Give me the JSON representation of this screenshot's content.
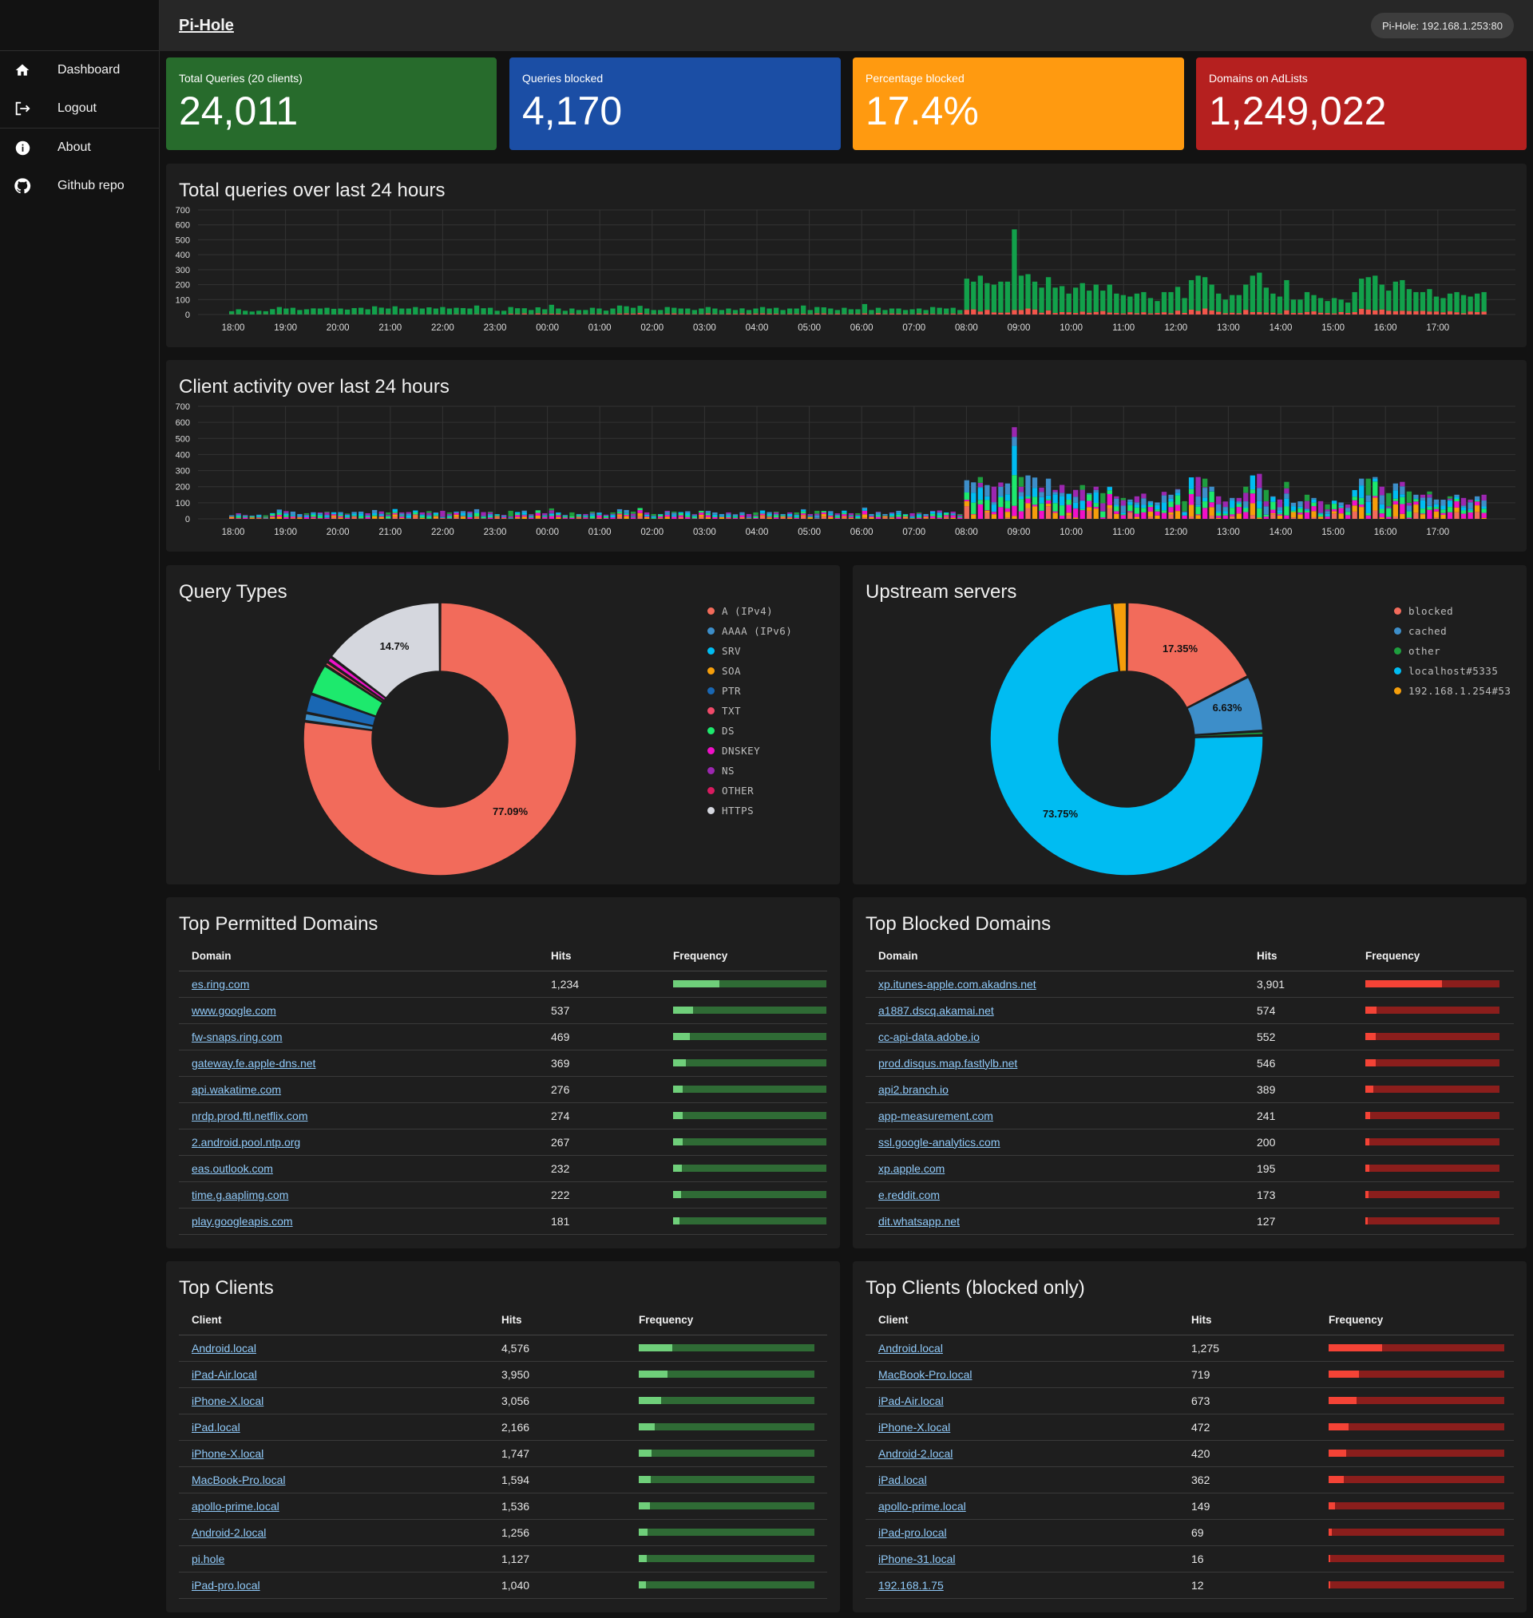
{
  "app": {
    "title": "Pi-Hole",
    "host": "Pi-Hole: 192.168.1.253:80"
  },
  "sidebar": {
    "items": [
      {
        "label": "Dashboard",
        "icon": "home-icon"
      },
      {
        "label": "Logout",
        "icon": "logout-icon"
      },
      {
        "label": "About",
        "icon": "info-icon"
      },
      {
        "label": "Github repo",
        "icon": "github-icon"
      }
    ]
  },
  "stats": [
    {
      "label": "Total Queries (20 clients)",
      "value": "24,011",
      "color": "#276b2c"
    },
    {
      "label": "Queries blocked",
      "value": "4,170",
      "color": "#1b4ea5"
    },
    {
      "label": "Percentage blocked",
      "value": "17.4%",
      "color": "#ff9a10"
    },
    {
      "label": "Domains on AdLists",
      "value": "1,249,022",
      "color": "#b5201f"
    }
  ],
  "chart_data": [
    {
      "type": "bar",
      "title": "Total queries over last 24 hours",
      "stacked": true,
      "ylim": [
        0,
        700
      ],
      "yticks": [
        0,
        100,
        200,
        300,
        400,
        500,
        600,
        700
      ],
      "x_labels": [
        "18:00",
        "19:00",
        "20:00",
        "21:00",
        "22:00",
        "23:00",
        "00:00",
        "01:00",
        "02:00",
        "03:00",
        "04:00",
        "05:00",
        "06:00",
        "07:00",
        "08:00",
        "09:00",
        "10:00",
        "11:00",
        "12:00",
        "13:00",
        "14:00",
        "15:00",
        "16:00",
        "17:00"
      ],
      "grid": true,
      "series": [
        {
          "values": [
            22,
            35,
            25,
            20,
            25,
            22,
            36,
            50,
            40,
            45,
            30,
            35,
            41,
            40,
            45,
            38,
            40,
            33,
            43,
            45,
            35,
            55,
            46,
            40,
            55,
            40,
            40,
            50,
            40,
            48,
            40,
            50,
            40,
            45,
            43,
            40,
            60,
            42,
            45,
            25,
            25,
            50,
            42,
            42,
            30,
            48,
            35,
            65,
            40,
            25,
            40,
            30,
            30,
            45,
            40,
            26,
            40,
            60,
            55,
            45,
            58,
            40,
            30,
            30,
            50,
            45,
            40,
            40,
            30,
            40,
            50,
            40,
            30,
            40,
            30,
            41,
            30,
            40,
            50,
            40,
            45,
            30,
            40,
            40,
            60,
            30,
            50,
            48,
            40,
            30,
            45,
            35,
            35,
            70,
            30,
            45,
            30,
            40,
            40,
            30,
            35,
            40,
            30,
            50,
            45,
            40,
            45,
            30,
            240,
            220,
            260,
            210,
            200,
            220,
            220,
            570,
            260,
            270,
            220,
            180,
            250,
            180,
            190,
            140,
            180,
            210,
            160,
            200,
            160,
            200,
            140,
            130,
            120,
            140,
            150,
            110,
            90,
            150,
            150,
            185,
            110,
            230,
            260,
            250,
            200,
            140,
            100,
            130,
            130,
            200,
            260,
            280,
            180,
            140,
            120,
            230,
            100,
            100,
            150,
            130,
            110,
            90,
            110,
            100,
            80,
            150,
            240,
            250,
            260,
            200,
            160,
            220,
            230,
            170,
            150,
            150,
            170,
            120,
            110,
            140,
            150,
            130,
            120,
            140,
            150
          ]
        },
        {
          "values": [
            0,
            0,
            0,
            0,
            0,
            0,
            0,
            0,
            0,
            0,
            0,
            0,
            0,
            0,
            0,
            0,
            0,
            0,
            0,
            0,
            0,
            0,
            0,
            0,
            0,
            0,
            0,
            0,
            0,
            0,
            0,
            0,
            0,
            0,
            0,
            0,
            0,
            0,
            0,
            0,
            0,
            0,
            0,
            0,
            0,
            0,
            0,
            0,
            0,
            0,
            0,
            0,
            0,
            0,
            0,
            0,
            0,
            0,
            0,
            0,
            0,
            0,
            0,
            0,
            0,
            0,
            0,
            0,
            0,
            0,
            0,
            0,
            0,
            0,
            0,
            0,
            0,
            0,
            0,
            0,
            0,
            0,
            0,
            0,
            0,
            0,
            0,
            0,
            0,
            0,
            0,
            0,
            0,
            0,
            0,
            0,
            0,
            0,
            0,
            0,
            0,
            0,
            0,
            0,
            0,
            0,
            0,
            0,
            0,
            0,
            0,
            0,
            0,
            0,
            0,
            0,
            0,
            0,
            0,
            0,
            0,
            0,
            0,
            0,
            0,
            0,
            0,
            0,
            0,
            0,
            0,
            0,
            0,
            0,
            0,
            0,
            0,
            0,
            0,
            0,
            0,
            0,
            0,
            0,
            0,
            0,
            0,
            0,
            0,
            0,
            0,
            0,
            0,
            0,
            0,
            0,
            0,
            0,
            0,
            0,
            0,
            0,
            0,
            0,
            0,
            0,
            0,
            0,
            0,
            0,
            0,
            0,
            0,
            0,
            0,
            0,
            0,
            0,
            0,
            0,
            0,
            0,
            0,
            0,
            0
          ]
        }
      ]
    },
    {
      "type": "bar",
      "title": "Client activity over last 24 hours",
      "stacked": true,
      "ylim": [
        0,
        700
      ],
      "yticks": [
        0,
        100,
        200,
        300,
        400,
        500,
        600,
        700
      ],
      "x_labels": [
        "18:00",
        "19:00",
        "20:00",
        "21:00",
        "22:00",
        "23:00",
        "00:00",
        "01:00",
        "02:00",
        "03:00",
        "04:00",
        "05:00",
        "06:00",
        "07:00",
        "08:00",
        "09:00",
        "10:00",
        "11:00",
        "12:00",
        "13:00",
        "14:00",
        "15:00",
        "16:00",
        "17:00"
      ],
      "grid": true
    }
  ],
  "query_types": {
    "title": "Query Types",
    "legend": [
      {
        "label": "A (IPv4)",
        "color": "#f26b5b"
      },
      {
        "label": "AAAA (IPv6)",
        "color": "#3d8ec9"
      },
      {
        "label": "SRV",
        "color": "#00bcf2"
      },
      {
        "label": "SOA",
        "color": "#f59e0b"
      },
      {
        "label": "PTR",
        "color": "#1967b3"
      },
      {
        "label": "TXT",
        "color": "#f04a6a"
      },
      {
        "label": "DS",
        "color": "#1de96d"
      },
      {
        "label": "DNSKEY",
        "color": "#f010c8"
      },
      {
        "label": "NS",
        "color": "#9c27b0"
      },
      {
        "label": "OTHER",
        "color": "#d81b60"
      },
      {
        "label": "HTTPS",
        "color": "#d5d7de"
      }
    ],
    "chart_data": {
      "type": "pie",
      "slices": [
        {
          "label": "A (IPv4)",
          "value": 77.09,
          "color": "#f26b5b"
        },
        {
          "label": "AAAA (IPv6)",
          "value": 1.0,
          "color": "#3d8ec9"
        },
        {
          "label": "PTR",
          "value": 2.3,
          "color": "#1967b3"
        },
        {
          "label": "DS",
          "value": 3.7,
          "color": "#1de96d"
        },
        {
          "label": "TXT",
          "value": 0.5,
          "color": "#f04a6a"
        },
        {
          "label": "DNSKEY",
          "value": 0.7,
          "color": "#f010c8"
        },
        {
          "label": "HTTPS",
          "value": 14.7,
          "color": "#d5d7de"
        }
      ],
      "labels": [
        {
          "text": "77.09%"
        },
        {
          "text": "14.7%"
        }
      ]
    }
  },
  "upstream": {
    "title": "Upstream servers",
    "legend": [
      {
        "label": "blocked",
        "color": "#f26b5b"
      },
      {
        "label": "cached",
        "color": "#3d8ec9"
      },
      {
        "label": "other",
        "color": "#1e9e3e"
      },
      {
        "label": "localhost#5335",
        "color": "#00bcf2"
      },
      {
        "label": "192.168.1.254#53",
        "color": "#f59e0b"
      }
    ],
    "chart_data": {
      "type": "pie",
      "slices": [
        {
          "label": "blocked",
          "value": 17.35,
          "color": "#f26b5b"
        },
        {
          "label": "cached",
          "value": 6.63,
          "color": "#3d8ec9"
        },
        {
          "label": "other",
          "value": 0.5,
          "color": "#1e9e3e"
        },
        {
          "label": "localhost#5335",
          "value": 73.75,
          "color": "#00bcf2"
        },
        {
          "label": "192.168.1.254#53",
          "value": 1.77,
          "color": "#f59e0b"
        }
      ],
      "labels": [
        {
          "text": "17.35%"
        },
        {
          "text": "6.63%"
        },
        {
          "text": "73.75%"
        }
      ]
    }
  },
  "top_permitted": {
    "title": "Top Permitted Domains",
    "headers": [
      "Domain",
      "Hits",
      "Frequency"
    ],
    "rows": [
      {
        "name": "es.ring.com",
        "hits": "1,234",
        "freq": 0.3
      },
      {
        "name": "www.google.com",
        "hits": "537",
        "freq": 0.13
      },
      {
        "name": "fw-snaps.ring.com",
        "hits": "469",
        "freq": 0.11
      },
      {
        "name": "gateway.fe.apple-dns.net",
        "hits": "369",
        "freq": 0.085
      },
      {
        "name": "api.wakatime.com",
        "hits": "276",
        "freq": 0.065
      },
      {
        "name": "nrdp.prod.ftl.netflix.com",
        "hits": "274",
        "freq": 0.064
      },
      {
        "name": "2.android.pool.ntp.org",
        "hits": "267",
        "freq": 0.062
      },
      {
        "name": "eas.outlook.com",
        "hits": "232",
        "freq": 0.055
      },
      {
        "name": "time.g.aaplimg.com",
        "hits": "222",
        "freq": 0.052
      },
      {
        "name": "play.googleapis.com",
        "hits": "181",
        "freq": 0.043
      }
    ]
  },
  "top_blocked": {
    "title": "Top Blocked Domains",
    "headers": [
      "Domain",
      "Hits",
      "Frequency"
    ],
    "rows": [
      {
        "name": "xp.itunes-apple.com.akadns.net",
        "hits": "3,901",
        "freq": 0.57
      },
      {
        "name": "a1887.dscq.akamai.net",
        "hits": "574",
        "freq": 0.085
      },
      {
        "name": "cc-api-data.adobe.io",
        "hits": "552",
        "freq": 0.08
      },
      {
        "name": "prod.disqus.map.fastlylb.net",
        "hits": "546",
        "freq": 0.08
      },
      {
        "name": "api2.branch.io",
        "hits": "389",
        "freq": 0.057
      },
      {
        "name": "app-measurement.com",
        "hits": "241",
        "freq": 0.035
      },
      {
        "name": "ssl.google-analytics.com",
        "hits": "200",
        "freq": 0.03
      },
      {
        "name": "xp.apple.com",
        "hits": "195",
        "freq": 0.029
      },
      {
        "name": "e.reddit.com",
        "hits": "173",
        "freq": 0.025
      },
      {
        "name": "dit.whatsapp.net",
        "hits": "127",
        "freq": 0.019
      }
    ]
  },
  "top_clients": {
    "title": "Top Clients",
    "headers": [
      "Client",
      "Hits",
      "Frequency"
    ],
    "rows": [
      {
        "name": "Android.local",
        "hits": "4,576",
        "freq": 0.19
      },
      {
        "name": "iPad-Air.local",
        "hits": "3,950",
        "freq": 0.165
      },
      {
        "name": "iPhone-X.local",
        "hits": "3,056",
        "freq": 0.127
      },
      {
        "name": "iPad.local",
        "hits": "2,166",
        "freq": 0.09
      },
      {
        "name": "iPhone-X.local",
        "hits": "1,747",
        "freq": 0.073
      },
      {
        "name": "MacBook-Pro.local",
        "hits": "1,594",
        "freq": 0.066
      },
      {
        "name": "apollo-prime.local",
        "hits": "1,536",
        "freq": 0.064
      },
      {
        "name": "Android-2.local",
        "hits": "1,256",
        "freq": 0.052
      },
      {
        "name": "pi.hole",
        "hits": "1,127",
        "freq": 0.047
      },
      {
        "name": "iPad-pro.local",
        "hits": "1,040",
        "freq": 0.043
      }
    ]
  },
  "top_clients_blocked": {
    "title": "Top Clients (blocked only)",
    "headers": [
      "Client",
      "Hits",
      "Frequency"
    ],
    "rows": [
      {
        "name": "Android.local",
        "hits": "1,275",
        "freq": 0.305
      },
      {
        "name": "MacBook-Pro.local",
        "hits": "719",
        "freq": 0.172
      },
      {
        "name": "iPad-Air.local",
        "hits": "673",
        "freq": 0.161
      },
      {
        "name": "iPhone-X.local",
        "hits": "472",
        "freq": 0.113
      },
      {
        "name": "Android-2.local",
        "hits": "420",
        "freq": 0.1
      },
      {
        "name": "iPad.local",
        "hits": "362",
        "freq": 0.087
      },
      {
        "name": "apollo-prime.local",
        "hits": "149",
        "freq": 0.036
      },
      {
        "name": "iPad-pro.local",
        "hits": "69",
        "freq": 0.017
      },
      {
        "name": "iPhone-31.local",
        "hits": "16",
        "freq": 0.004
      },
      {
        "name": "192.168.1.75",
        "hits": "12",
        "freq": 0.003
      }
    ]
  }
}
